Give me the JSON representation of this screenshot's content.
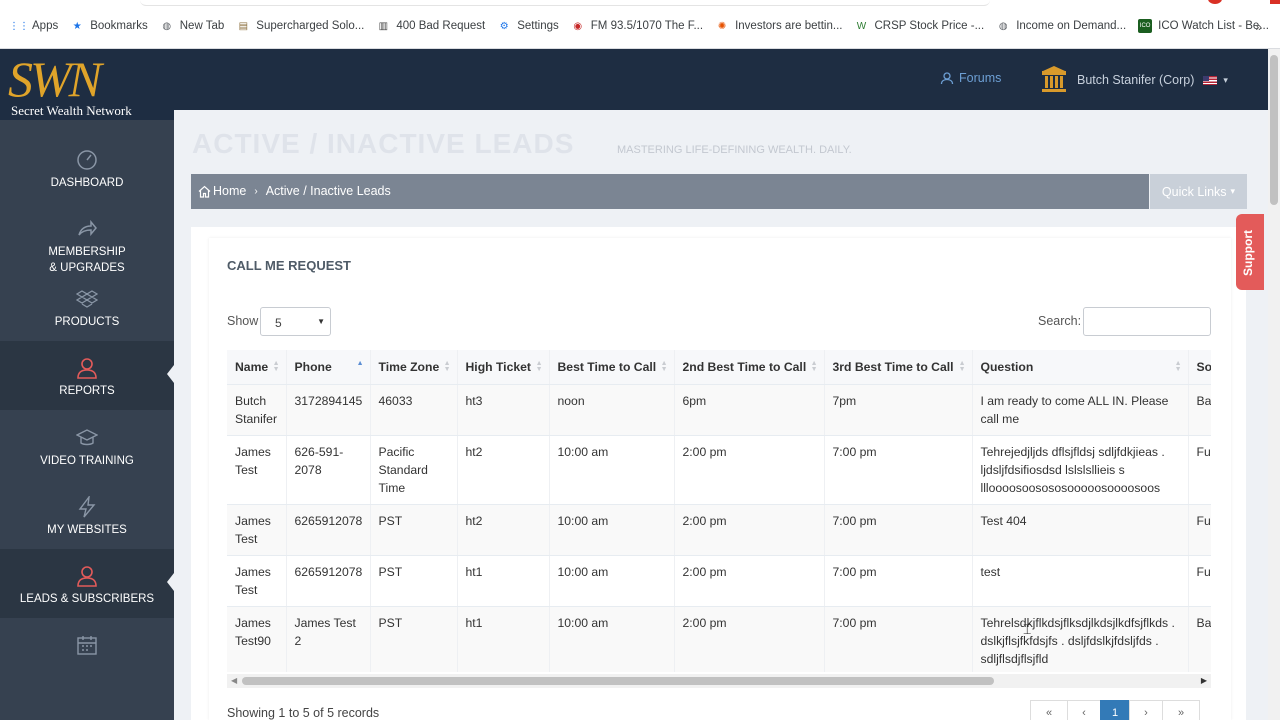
{
  "bookmarks": [
    {
      "label": "Apps",
      "icon": "apps-grid-icon",
      "color": "#1a73e8"
    },
    {
      "label": "Bookmarks",
      "icon": "star-icon",
      "color": "#1a73e8"
    },
    {
      "label": "New Tab",
      "icon": "globe-icon",
      "color": "#5f6368"
    },
    {
      "label": "Supercharged Solo...",
      "icon": "site-favicon",
      "color": "#8a6d3b"
    },
    {
      "label": "400 Bad Request",
      "icon": "pillar-icon",
      "color": "#444444"
    },
    {
      "label": "Settings",
      "icon": "gear-icon",
      "color": "#1a73e8"
    },
    {
      "label": "FM 93.5/1070 The F...",
      "icon": "radio-favicon",
      "color": "#c62828"
    },
    {
      "label": "Investors are bettin...",
      "icon": "nbc-peacock-icon",
      "color": "#e65100"
    },
    {
      "label": "CRSP Stock Price -...",
      "icon": "wsj-favicon",
      "color": "#2e7d32"
    },
    {
      "label": "Income on Demand...",
      "icon": "globe-icon",
      "color": "#5f6368"
    },
    {
      "label": "ICO Watch List - Be...",
      "icon": "ico-favicon",
      "color": "#1b5e20"
    }
  ],
  "bookmarks_more": "»",
  "logo": {
    "mark": "SWN",
    "subtitle": "Secret Wealth Network"
  },
  "header": {
    "forums": "Forums",
    "user": "Butch Stanifer (Corp)"
  },
  "sidebar": [
    {
      "label": "DASHBOARD",
      "icon": "gauge-icon"
    },
    {
      "label": "MEMBERSHIP\n& UPGRADES",
      "icon": "share-arrow-icon"
    },
    {
      "label": "PRODUCTS",
      "icon": "dropbox-icon"
    },
    {
      "label": "REPORTS",
      "icon": "user-icon",
      "active": true
    },
    {
      "label": "VIDEO TRAINING",
      "icon": "graduation-cap-icon"
    },
    {
      "label": "MY WEBSITES",
      "icon": "bolt-icon"
    },
    {
      "label": "LEADS & SUBSCRIBERS",
      "icon": "user-icon",
      "active": true
    },
    {
      "label": "",
      "icon": "calendar-icon"
    }
  ],
  "page": {
    "title": "ACTIVE / INACTIVE LEADS",
    "subtitle": "MASTERING LIFE-DEFINING WEALTH. DAILY.",
    "breadcrumb": {
      "home": "Home",
      "current": "Active / Inactive Leads"
    },
    "quick_links": "Quick Links",
    "support": "Support"
  },
  "panel": {
    "caption": "CALL ME REQUEST",
    "show_label": "Show",
    "show_value": "5",
    "search_label": "Search:",
    "search_value": ""
  },
  "table": {
    "columns": [
      "Name",
      "Phone",
      "Time Zone",
      "High Ticket",
      "Best Time to Call",
      "2nd Best Time to Call",
      "3rd Best Time to Call",
      "Question",
      "Sou"
    ],
    "rows": [
      [
        "Butch Stanifer",
        "3172894145",
        "46033",
        "ht3",
        "noon",
        "6pm",
        "7pm",
        "I am ready to come ALL IN. Please call me",
        "Bac"
      ],
      [
        "James Test",
        "626-591-2078",
        "Pacific Standard Time",
        "ht2",
        "10:00 am",
        "2:00 pm",
        "7:00 pm",
        "Tehrejedjljds dflsjfldsj sdljfdkjieas . ljdsljfdsifiosdsd lslslsllieis s llloooosoosososooooosoooosoos",
        "Fun Pag"
      ],
      [
        "James Test",
        "6265912078",
        "PST",
        "ht2",
        "10:00 am",
        "2:00 pm",
        "7:00 pm",
        "Test 404",
        "Fun Pag"
      ],
      [
        "James Test",
        "6265912078",
        "PST",
        "ht1",
        "10:00 am",
        "2:00 pm",
        "7:00 pm",
        "test",
        "Fun Pag"
      ],
      [
        "James Test90",
        "James Test 2",
        "PST",
        "ht1",
        "10:00 am",
        "2:00 pm",
        "7:00 pm",
        "Tehrelsdkjflkdsjflksdjlkdsjlkdfsjflkds . dslkjflsjfkfdsjfs . dsljfdslkjfdsljfds . sdljflsdjflsjfld",
        "Bac"
      ]
    ]
  },
  "footer": {
    "info": "Showing 1 to 5 of 5 records",
    "pager": [
      "«",
      "‹",
      "1",
      "›",
      "»"
    ]
  }
}
